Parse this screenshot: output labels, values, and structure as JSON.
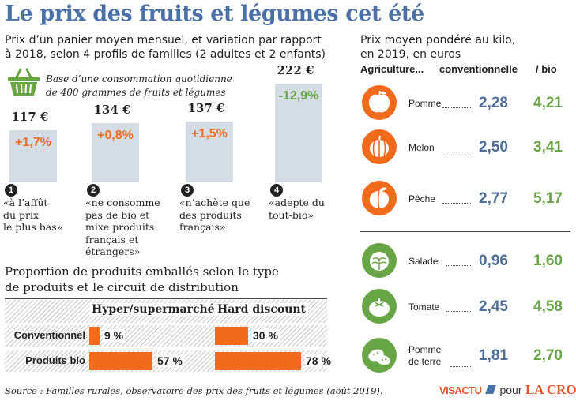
{
  "title": "Le prix des fruits et légumes cet été",
  "left_intro": [
    "Prix d’un panier moyen mensuel, et variation par rapport",
    "à 2018, selon 4 profils de familles (2 adultes et 2 enfants)"
  ],
  "basket_note": [
    "Base d’une consommation quotidienne",
    "de 400 grammes de fruits et légumes"
  ],
  "profiles": [
    {
      "number": "1",
      "price": "117 €",
      "variation": "+1,7%",
      "lines": [
        "«à l’affût",
        "du prix",
        "le plus bas»"
      ]
    },
    {
      "number": "2",
      "price": "134 €",
      "variation": "+0,8%",
      "lines": [
        "«ne consomme",
        "pas de bio et",
        "mixe produits",
        "français et",
        "étrangers»"
      ]
    },
    {
      "number": "3",
      "price": "137 €",
      "variation": "+1,5%",
      "lines": [
        "«n’achète que",
        "des produits",
        "français»"
      ]
    },
    {
      "number": "4",
      "price": "222 €",
      "variation": "-12,9%",
      "lines": [
        "«adepte du",
        "tout-bio»"
      ]
    }
  ],
  "right_intro": [
    "Prix moyen pondéré au kilo,",
    "en 2019, en euros"
  ],
  "right_header": {
    "agri": "Agriculture...",
    "conv": "conventionnelle",
    "bio": "/ bio"
  },
  "produce": [
    {
      "name": [
        "Pomme"
      ],
      "icon": "apple-icon",
      "conv": "2,28",
      "bio": "4,21"
    },
    {
      "name": [
        "Melon"
      ],
      "icon": "melon-icon",
      "conv": "2,50",
      "bio": "3,41"
    },
    {
      "name": [
        "Pêche"
      ],
      "icon": "peach-icon",
      "conv": "2,77",
      "bio": "5,17"
    },
    {
      "name": [
        "Salade"
      ],
      "icon": "lettuce-icon",
      "conv": "0,96",
      "bio": "1,60"
    },
    {
      "name": [
        "Tomate"
      ],
      "icon": "tomato-icon",
      "conv": "2,45",
      "bio": "4,58"
    },
    {
      "name": [
        "Pomme",
        "de terre"
      ],
      "icon": "potato-icon",
      "conv": "1,81",
      "bio": "2,70"
    }
  ],
  "packaging": {
    "title": [
      "Proportion de produits emballés selon le type",
      "de produits et le circuit de distribution"
    ],
    "columns": [
      "Hyper/supermarché",
      "Hard discount"
    ],
    "rows": [
      {
        "label": "Conventionnel",
        "values": [
          9,
          30
        ],
        "labels": [
          "9 %",
          "30 %"
        ]
      },
      {
        "label": "Produits bio",
        "values": [
          57,
          78
        ],
        "labels": [
          "57 %",
          "78 %"
        ]
      }
    ]
  },
  "chart_data": [
    {
      "type": "bar",
      "categories": [
        "1",
        "2",
        "3",
        "4"
      ],
      "values": [
        117,
        134,
        137,
        222
      ],
      "variation": [
        "+1,7%",
        "+0,8%",
        "+1,5%",
        "-12,9%"
      ],
      "unit": "€"
    },
    {
      "type": "table",
      "columns": [
        "Agriculture... conventionnelle",
        "bio"
      ],
      "rows": [
        [
          "Pomme",
          2.28,
          4.21
        ],
        [
          "Melon",
          2.5,
          3.41
        ],
        [
          "Pêche",
          2.77,
          5.17
        ],
        [
          "Salade",
          0.96,
          1.6
        ],
        [
          "Tomate",
          2.45,
          4.58
        ],
        [
          "Pomme de terre",
          1.81,
          2.7
        ]
      ]
    },
    {
      "type": "bar",
      "categories": [
        "Conventionnel",
        "Produits bio"
      ],
      "series": [
        {
          "name": "Hyper/supermarché",
          "values": [
            9,
            57
          ]
        },
        {
          "name": "Hard discount",
          "values": [
            30,
            78
          ]
        }
      ],
      "ylim": [
        0,
        100
      ]
    }
  ],
  "source": "Source : Familles rurales, observatoire des prix des fruits et légumes (août 2019).",
  "logo": {
    "visactu": "VISACTU",
    "pour": "pour",
    "lacroix": "LA CROIX"
  },
  "colors": {
    "title": "#4a72a8",
    "orange": "#f26b1d",
    "green": "#68a545",
    "blue": "#4f6f96",
    "bar": "#d4dce5"
  }
}
